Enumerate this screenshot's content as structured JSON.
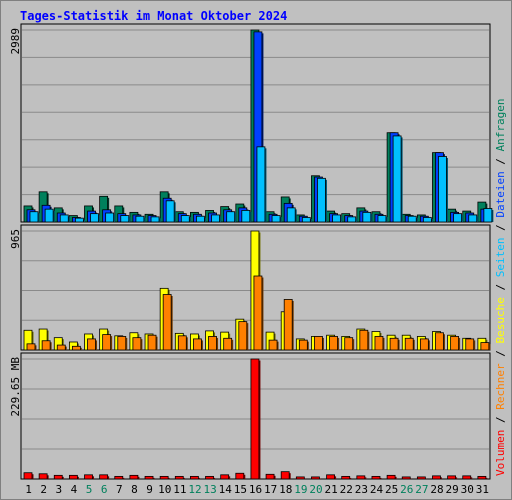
{
  "title": "Tages-Statistik im Monat Oktober 2024",
  "colors": {
    "frame_bg": "#c0c0c0",
    "plot_bg": "#c0c0c0",
    "grid": "#8a8a8a",
    "title": "#0000ff",
    "hits": "#00805c",
    "files": "#0040ff",
    "pages": "#00c0ff",
    "visits": "#ffff00",
    "sites": "#ff8000",
    "kbytes": "#ff0000",
    "weekend_label": "#00805c",
    "weekday_label": "#000000"
  },
  "chart_data": {
    "type": "bar",
    "days": [
      "1",
      "2",
      "3",
      "4",
      "5",
      "6",
      "7",
      "8",
      "9",
      "10",
      "11",
      "12",
      "13",
      "14",
      "15",
      "16",
      "17",
      "18",
      "19",
      "20",
      "21",
      "22",
      "23",
      "24",
      "25",
      "26",
      "27",
      "28",
      "29",
      "30",
      "31"
    ],
    "weekend_days": [
      5,
      6,
      12,
      13,
      19,
      20,
      26,
      27
    ],
    "right_label": {
      "hits": "Anfragen",
      "files": "Dateien",
      "pages": "Seiten",
      "visits": "Besuche",
      "sites": "Rechner",
      "kbytes": "Volumen",
      "separator": " / "
    },
    "panels": [
      {
        "id": "requests",
        "max_label": "2989",
        "max": 2989,
        "series": [
          {
            "key": "hits",
            "values": [
              250,
              470,
              220,
              100,
              250,
              400,
              250,
              150,
              120,
              470,
              160,
              150,
              180,
              240,
              280,
              2989,
              160,
              390,
              110,
              720,
              170,
              130,
              220,
              160,
              1390,
              120,
              110,
              1080,
              200,
              170,
              310
            ]
          },
          {
            "key": "files",
            "values": [
              190,
              260,
              140,
              70,
              170,
              190,
              130,
              110,
              100,
              370,
              130,
              120,
              140,
              190,
              220,
              2960,
              120,
              290,
              90,
              700,
              130,
              100,
              170,
              120,
              1390,
              100,
              90,
              1080,
              150,
              140,
              200
            ]
          },
          {
            "key": "pages",
            "values": [
              160,
              200,
              110,
              60,
              130,
              140,
              100,
              90,
              80,
              330,
              100,
              90,
              110,
              160,
              180,
              1170,
              100,
              220,
              70,
              680,
              110,
              80,
              150,
              100,
              1340,
              90,
              70,
              1020,
              130,
              110,
              210
            ]
          }
        ]
      },
      {
        "id": "visits",
        "max_label": "965",
        "max": 965,
        "series": [
          {
            "key": "visits",
            "values": [
              160,
              170,
              100,
              65,
              130,
              170,
              115,
              140,
              130,
              500,
              135,
              130,
              155,
              145,
              250,
              965,
              145,
              310,
              90,
              110,
              120,
              110,
              170,
              150,
              120,
              120,
              110,
              150,
              120,
              95,
              95
            ]
          },
          {
            "key": "sites",
            "values": [
              50,
              75,
              40,
              30,
              90,
              125,
              110,
              100,
              120,
              450,
              115,
              90,
              110,
              95,
              230,
              600,
              80,
              410,
              80,
              110,
              110,
              100,
              160,
              110,
              95,
              95,
              90,
              140,
              110,
              90,
              60
            ]
          }
        ]
      },
      {
        "id": "volume",
        "max_label": "229.65 MB",
        "max": 229.65,
        "series": [
          {
            "key": "kbytes",
            "values": [
              12,
              10,
              7,
              7,
              8,
              8,
              5,
              7,
              5,
              5,
              5,
              5,
              5,
              8,
              11,
              229.65,
              9,
              14,
              4,
              4,
              8,
              5,
              6,
              5,
              7,
              4,
              4,
              6,
              6,
              6,
              5
            ]
          }
        ]
      }
    ]
  }
}
